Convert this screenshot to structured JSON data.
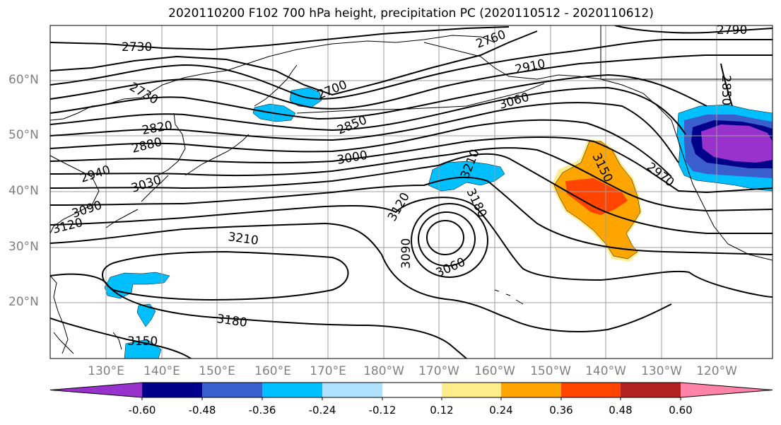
{
  "title": "2020110200 F102 700 hPa height, precipitation PC (2020110512 - 2020110612)",
  "lat_labels": [
    "60°N",
    "50°N",
    "40°N",
    "30°N",
    "20°N"
  ],
  "lon_labels": [
    "130°E",
    "140°E",
    "150°E",
    "160°E",
    "170°E",
    "180°W",
    "170°W",
    "160°W",
    "150°W",
    "140°W",
    "130°W",
    "120°W"
  ],
  "contour_labels": [
    "2730",
    "2730",
    "2760",
    "2790",
    "2700",
    "2910",
    "2850",
    "3060",
    "2820",
    "2880",
    "3000",
    "2940",
    "3030",
    "3090",
    "3120",
    "3210",
    "3180",
    "3150",
    "3120",
    "3090",
    "3060",
    "2970",
    "2850",
    "3210",
    "3180",
    "3150"
  ],
  "colorbar": {
    "colors": [
      "#9932CC",
      "#00008B",
      "#3A5FCD",
      "#00BFFF",
      "#B0E2FF",
      "#FFFFFF",
      "#FFEC8B",
      "#FFA500",
      "#FF4500",
      "#B22222",
      "#FF82AB"
    ],
    "labels": [
      "-0.60",
      "-0.48",
      "-0.36",
      "-0.24",
      "-0.12",
      "0.12",
      "0.24",
      "0.36",
      "0.48",
      "0.60"
    ]
  }
}
